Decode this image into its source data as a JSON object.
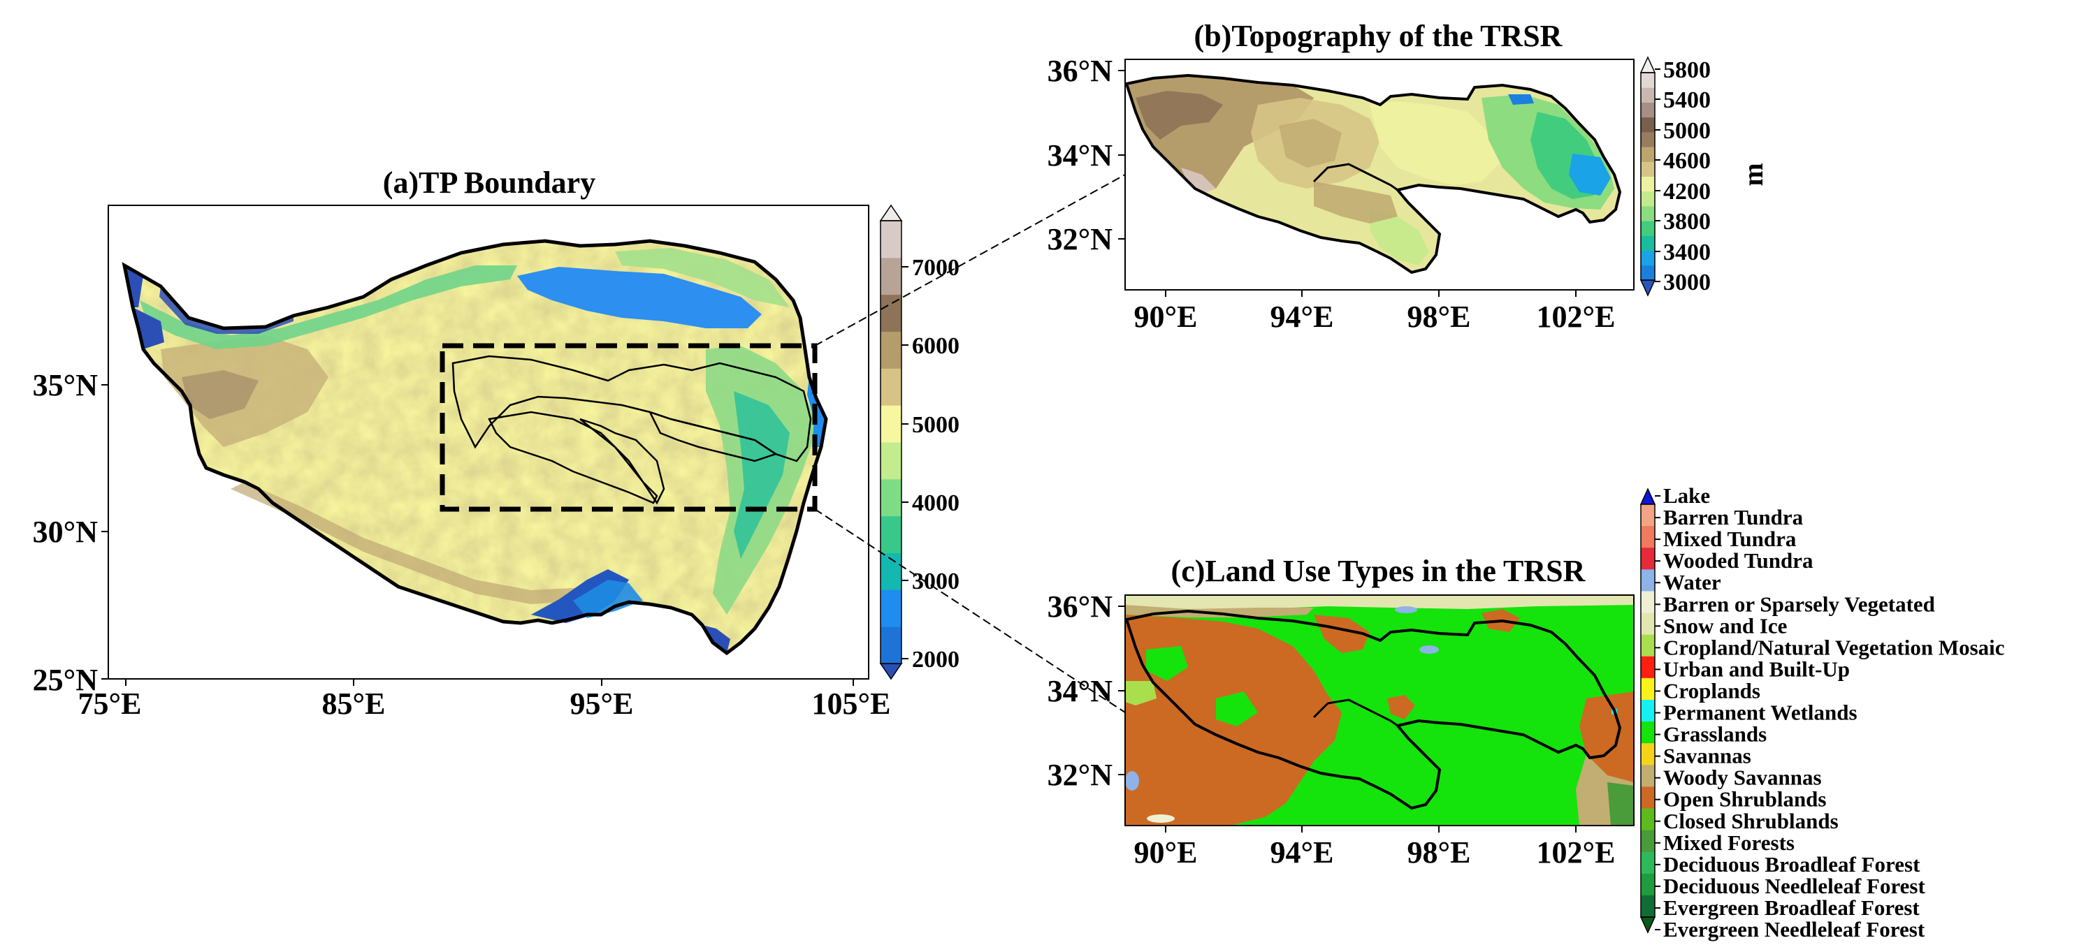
{
  "panels": {
    "a": {
      "title": "(a)TP Boundary",
      "x_ticks": [
        "75°E",
        "85°E",
        "95°E",
        "105°E"
      ],
      "y_ticks": [
        "25°N",
        "30°N",
        "35°N"
      ],
      "colorbar": {
        "ticks": [
          "2000",
          "3000",
          "4000",
          "5000",
          "6000",
          "7000"
        ],
        "colors": [
          "#2c4fb6",
          "#1e73d6",
          "#1f8cf0",
          "#13b8b0",
          "#38c98a",
          "#7edc85",
          "#c2ec8e",
          "#f7f79f",
          "#d6c486",
          "#b59c6b",
          "#8e7358",
          "#b8a397",
          "#d8cbc6",
          "#efebea"
        ],
        "extend": "both"
      }
    },
    "b": {
      "title": "(b)Topography of the TRSR",
      "x_ticks": [
        "90°E",
        "94°E",
        "98°E",
        "102°E"
      ],
      "y_ticks": [
        "32°N",
        "34°N",
        "36°N"
      ],
      "colorbar": {
        "ticks": [
          "3000",
          "3400",
          "3800",
          "4200",
          "4600",
          "5000",
          "5400",
          "5800"
        ],
        "unit": "m",
        "colors": [
          "#2b55b9",
          "#1b7fe0",
          "#1aa3e6",
          "#19bd9b",
          "#42cc7e",
          "#8ddc80",
          "#c4ea8c",
          "#eef2a0",
          "#d6c586",
          "#bda56e",
          "#987c5e",
          "#7a5f4c",
          "#a68f83",
          "#c9b7b0",
          "#e2d8d4",
          "#f3f0ef"
        ],
        "extend": "both"
      }
    },
    "c": {
      "title": "(c)Land Use Types in the TRSR",
      "x_ticks": [
        "90°E",
        "94°E",
        "98°E",
        "102°E"
      ],
      "y_ticks": [
        "32°N",
        "34°N",
        "36°N"
      ],
      "legend": [
        {
          "label": "Lake",
          "color": "#0d17d8"
        },
        {
          "label": "Barren Tundra",
          "color": "#f2a584"
        },
        {
          "label": "Mixed Tundra",
          "color": "#f07a5f"
        },
        {
          "label": "Wooded Tundra",
          "color": "#e62a3a"
        },
        {
          "label": "Water",
          "color": "#8db3e8"
        },
        {
          "label": "Barren or Sparsely Vegetated",
          "color": "#efefd4"
        },
        {
          "label": "Snow and Ice",
          "color": "#e4e6b2"
        },
        {
          "label": "Cropland/Natural Vegetation Mosaic",
          "color": "#a9de4d"
        },
        {
          "label": "Urban and Built-Up",
          "color": "#ff1f12"
        },
        {
          "label": "Croplands",
          "color": "#fbf21a"
        },
        {
          "label": "Permanent Wetlands",
          "color": "#16f0f2"
        },
        {
          "label": "Grasslands",
          "color": "#15e30c"
        },
        {
          "label": "Savannas",
          "color": "#f6d319"
        },
        {
          "label": "Woody Savannas",
          "color": "#c2ad72"
        },
        {
          "label": "Open Shrublands",
          "color": "#cc6a24"
        },
        {
          "label": "Closed Shrublands",
          "color": "#5ebb1c"
        },
        {
          "label": "Mixed Forests",
          "color": "#4a9b3a"
        },
        {
          "label": "Deciduous Broadleaf Forest",
          "color": "#2dba5c"
        },
        {
          "label": "Deciduous Needleleaf Forest",
          "color": "#1f9d3c"
        },
        {
          "label": "Evergreen Broadleaf Forest",
          "color": "#0e6e36"
        },
        {
          "label": "Evergreen Needleleaf Forest",
          "color": "#0a5a18"
        }
      ]
    }
  }
}
